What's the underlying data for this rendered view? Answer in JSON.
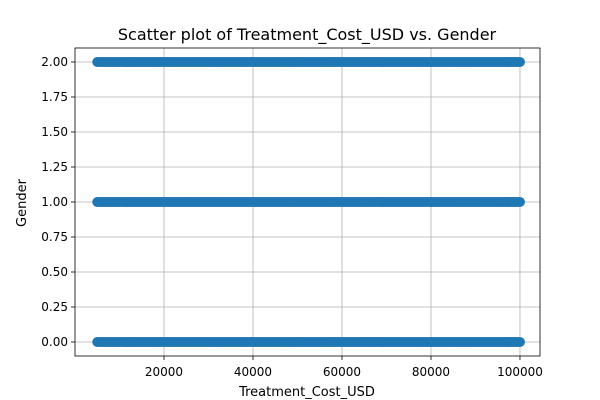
{
  "chart_data": {
    "type": "scatter",
    "title": "Scatter plot of Treatment_Cost_USD vs. Gender",
    "xlabel": "Treatment_Cost_USD",
    "ylabel": "Gender",
    "xlim": [
      0,
      104500
    ],
    "ylim": [
      -0.1,
      2.1
    ],
    "x_ticks": [
      20000,
      40000,
      60000,
      80000,
      100000
    ],
    "x_tick_labels": [
      "20000",
      "40000",
      "60000",
      "80000",
      "100000"
    ],
    "y_ticks": [
      0.0,
      0.25,
      0.5,
      0.75,
      1.0,
      1.25,
      1.5,
      1.75,
      2.0
    ],
    "y_tick_labels": [
      "0.00",
      "0.25",
      "0.50",
      "0.75",
      "1.00",
      "1.25",
      "1.50",
      "1.75",
      "2.00"
    ],
    "grid": true,
    "marker_color": "#1f77b4",
    "series": [
      {
        "groups": [
          {
            "y": 0,
            "x_range": [
              5000,
              100000
            ]
          },
          {
            "y": 1,
            "x_range": [
              5000,
              100000
            ]
          },
          {
            "y": 2,
            "x_range": [
              5000,
              100000
            ]
          }
        ]
      }
    ]
  }
}
